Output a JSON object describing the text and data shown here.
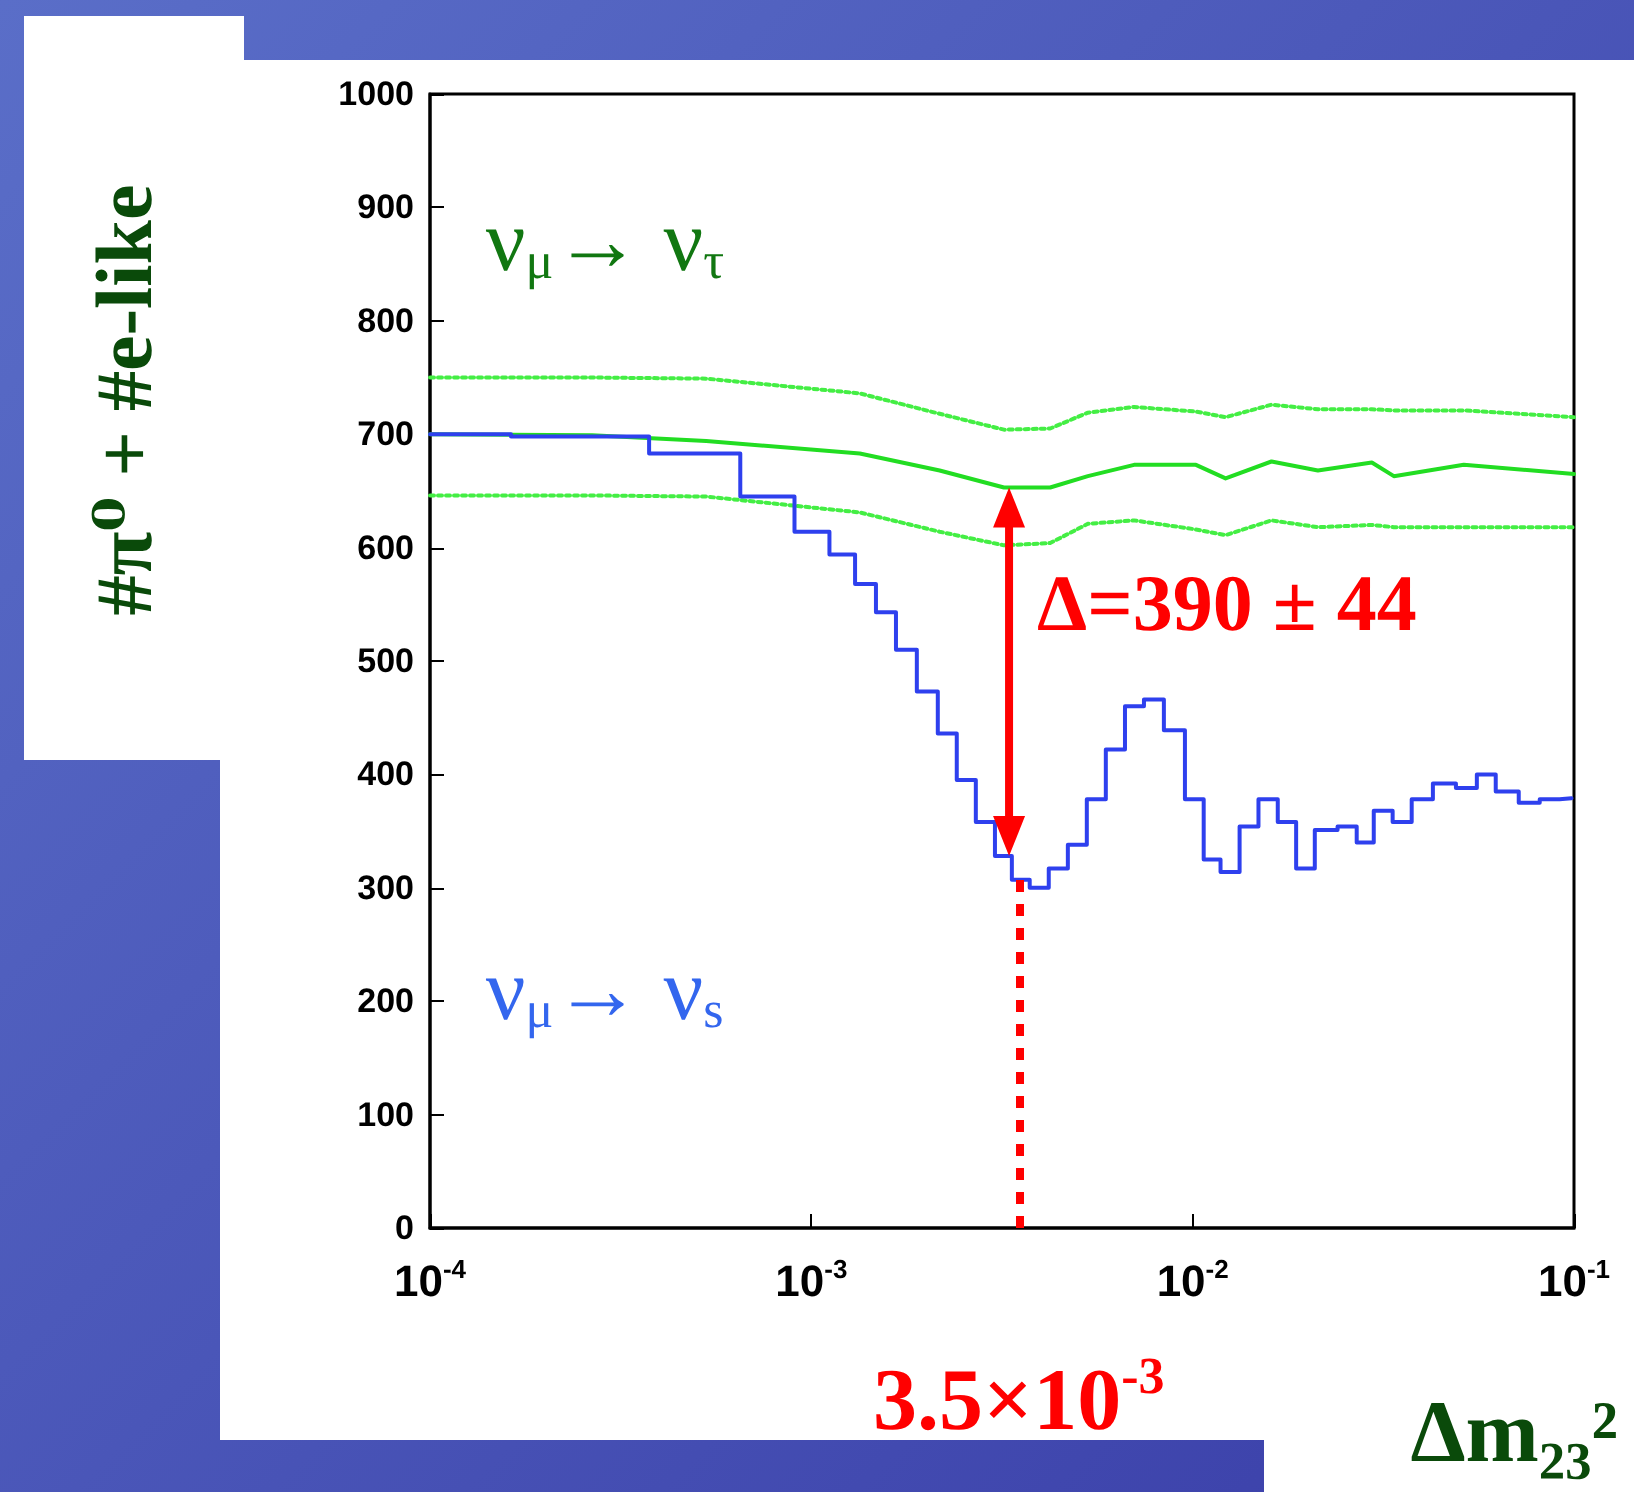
{
  "chart_data": {
    "type": "line",
    "xlabel": "Δm₂₃²",
    "ylabel": "#π⁰ + #e-like",
    "log": "x",
    "xlim": [
      0.0001,
      0.1
    ],
    "xticks": [
      {
        "value": 0.0001,
        "label": "10$^{-4}$"
      },
      {
        "value": 0.001,
        "label": "10$^{-3}$"
      },
      {
        "value": 0.01,
        "label": "10$^{-2}$"
      },
      {
        "value": 0.1,
        "label": "10$^{-1}$"
      }
    ],
    "ylim": [
      0,
      1000
    ],
    "yticks": [
      0,
      100,
      200,
      300,
      400,
      500,
      600,
      700,
      800,
      900,
      1000
    ],
    "grid": false,
    "legend": false,
    "marker": "none",
    "series": [
      {
        "name": "ν$_{μ}$→ ν$_{τ}$",
        "color": "#22dd22",
        "line_style": "solid",
        "x": [
          0.0001,
          0.000266,
          0.00053,
          0.00134,
          0.00217,
          0.0032,
          0.00423,
          0.00531,
          0.00702,
          0.0102,
          0.0122,
          0.0161,
          0.0213,
          0.0295,
          0.0337,
          0.0514,
          0.1
        ],
        "values": [
          700,
          699,
          694,
          683,
          668,
          653,
          653,
          663,
          673,
          673,
          661,
          676,
          668,
          675,
          663,
          673,
          665
        ]
      },
      {
        "color": "#44ee44",
        "line_style": "dotted",
        "x": [
          0.0001,
          0.000266,
          0.00053,
          0.00134,
          0.00217,
          0.0032,
          0.00423,
          0.00531,
          0.00702,
          0.0102,
          0.0122,
          0.0161,
          0.0213,
          0.0295,
          0.0337,
          0.0514,
          0.1
        ],
        "values": [
          750,
          750,
          749,
          736,
          718,
          704,
          705,
          719,
          724,
          720,
          715,
          726,
          722,
          722,
          721,
          721,
          715
        ]
      },
      {
        "color": "#44ee44",
        "line_style": "dotted",
        "x": [
          0.0001,
          0.000266,
          0.00053,
          0.00134,
          0.00217,
          0.0032,
          0.00423,
          0.00531,
          0.00702,
          0.0102,
          0.0122,
          0.0161,
          0.0213,
          0.0295,
          0.0337,
          0.0514,
          0.1
        ],
        "values": [
          646,
          646,
          645,
          631,
          614,
          602,
          604,
          621,
          624,
          616,
          611,
          624,
          618,
          620,
          618,
          618,
          618
        ]
      },
      {
        "name": "ν$_{μ}$→ ν$_{s}$",
        "type": "step",
        "color": "#2e40ee",
        "line_style": "solid",
        "x": [
          0.0001,
          0.000266,
          0.00053,
          0.0008,
          0.00102,
          0.00122,
          0.00139,
          0.00157,
          0.00177,
          0.00202,
          0.00228,
          0.00254,
          0.00287,
          0.0032,
          0.00352,
          0.00397,
          0.00443,
          0.005,
          0.00557,
          0.00629,
          0.00702,
          0.00791,
          0.00893,
          0.0102,
          0.0112,
          0.0125,
          0.0141,
          0.0157,
          0.0178,
          0.0196,
          0.0223,
          0.0258,
          0.0281,
          0.0317,
          0.0353,
          0.0399,
          0.0456,
          0.0527,
          0.0587,
          0.0662,
          0.0775,
          0.0853,
          0.0985
        ],
        "values": [
          700,
          698,
          683,
          645,
          614,
          594,
          568,
          543,
          510,
          473,
          436,
          395,
          358,
          328,
          307,
          300,
          317,
          338,
          378,
          422,
          460,
          466,
          439,
          378,
          325,
          314,
          354,
          378,
          358,
          317,
          351,
          354,
          340,
          368,
          358,
          378,
          392,
          388,
          400,
          385,
          375,
          378,
          379
        ]
      }
    ],
    "ref_lines": [
      {
        "axis": "x",
        "value": 0.0035,
        "label": "3.5×10$^{-3}$",
        "color": "#ff0000",
        "line_style": "dotted"
      }
    ],
    "annotations": [
      {
        "text": "Δ=390 ± 44",
        "x": 0.0033,
        "y": 653
      }
    ]
  }
}
